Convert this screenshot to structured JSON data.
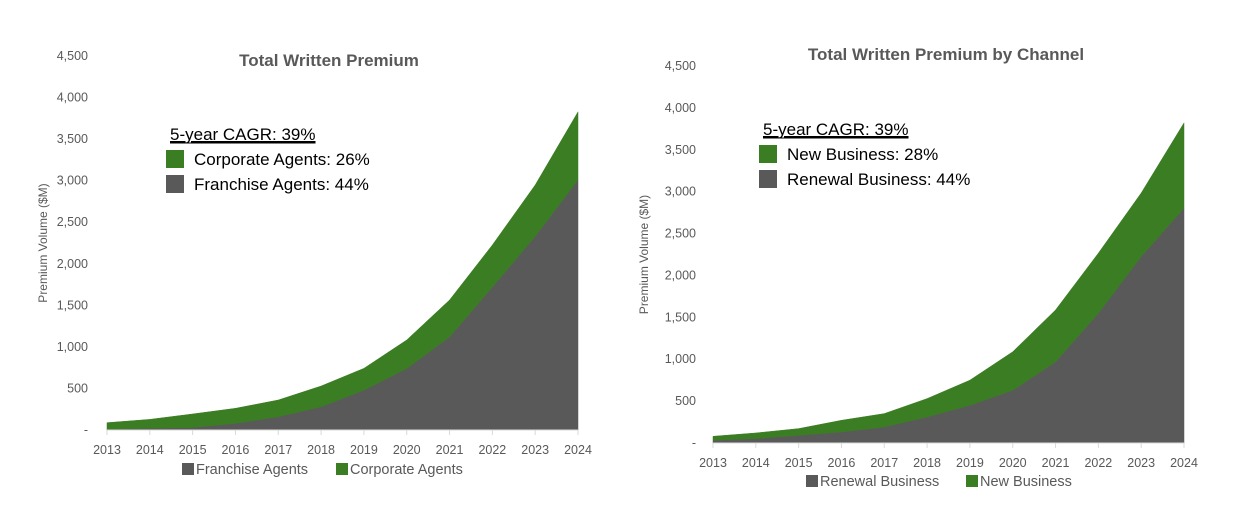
{
  "colors": {
    "green": "#3b7d23",
    "gray": "#595959"
  },
  "chart_data": [
    {
      "type": "area",
      "stacked": true,
      "title": "Total Written Premium",
      "ylabel": "Premium Volume ($M)",
      "xlabel": "",
      "ylim": [
        0,
        4500
      ],
      "yticks": [
        "-",
        "500",
        "1,000",
        "1,500",
        "2,000",
        "2,500",
        "3,000",
        "3,500",
        "4,000",
        "4,500"
      ],
      "categories": [
        "2013",
        "2014",
        "2015",
        "2016",
        "2017",
        "2018",
        "2019",
        "2020",
        "2021",
        "2022",
        "2023",
        "2024"
      ],
      "series": [
        {
          "name": "Franchise Agents",
          "color": "#595959",
          "values": [
            10,
            20,
            30,
            80,
            160,
            280,
            480,
            740,
            1120,
            1720,
            2330,
            3010
          ]
        },
        {
          "name": "Corporate Agents",
          "color": "#3b7d23",
          "values": [
            78,
            108,
            163,
            181,
            201,
            249,
            262,
            343,
            444,
            506,
            618,
            818
          ]
        }
      ],
      "legend_position": "bottom",
      "annotation": {
        "heading": "5-year CAGR: 39%",
        "items": [
          {
            "label": "Corporate Agents: 26%",
            "color": "#3b7d23"
          },
          {
            "label": "Franchise Agents: 44%",
            "color": "#595959"
          }
        ]
      }
    },
    {
      "type": "area",
      "stacked": true,
      "title": "Total Written Premium by Channel",
      "ylabel": "Premium Volume ($M)",
      "xlabel": "",
      "ylim": [
        0,
        4500
      ],
      "yticks": [
        "-",
        "500",
        "1,000",
        "1,500",
        "2,000",
        "2,500",
        "3,000",
        "3,500",
        "4,000",
        "4,500"
      ],
      "categories": [
        "2013",
        "2014",
        "2015",
        "2016",
        "2017",
        "2018",
        "2019",
        "2020",
        "2021",
        "2022",
        "2023",
        "2024"
      ],
      "series": [
        {
          "name": "Renewal Business",
          "color": "#595959",
          "values": [
            32,
            52,
            92,
            132,
            191,
            311,
            451,
            630,
            969,
            1548,
            2226,
            2804
          ]
        },
        {
          "name": "New Business",
          "color": "#3b7d23",
          "values": [
            48,
            68,
            80,
            139,
            160,
            219,
            299,
            459,
            619,
            718,
            758,
            1017
          ]
        }
      ],
      "legend_position": "bottom",
      "annotation": {
        "heading": "5-year CAGR: 39%",
        "items": [
          {
            "label": "New Business: 28%",
            "color": "#3b7d23"
          },
          {
            "label": "Renewal Business: 44%",
            "color": "#595959"
          }
        ]
      }
    }
  ]
}
